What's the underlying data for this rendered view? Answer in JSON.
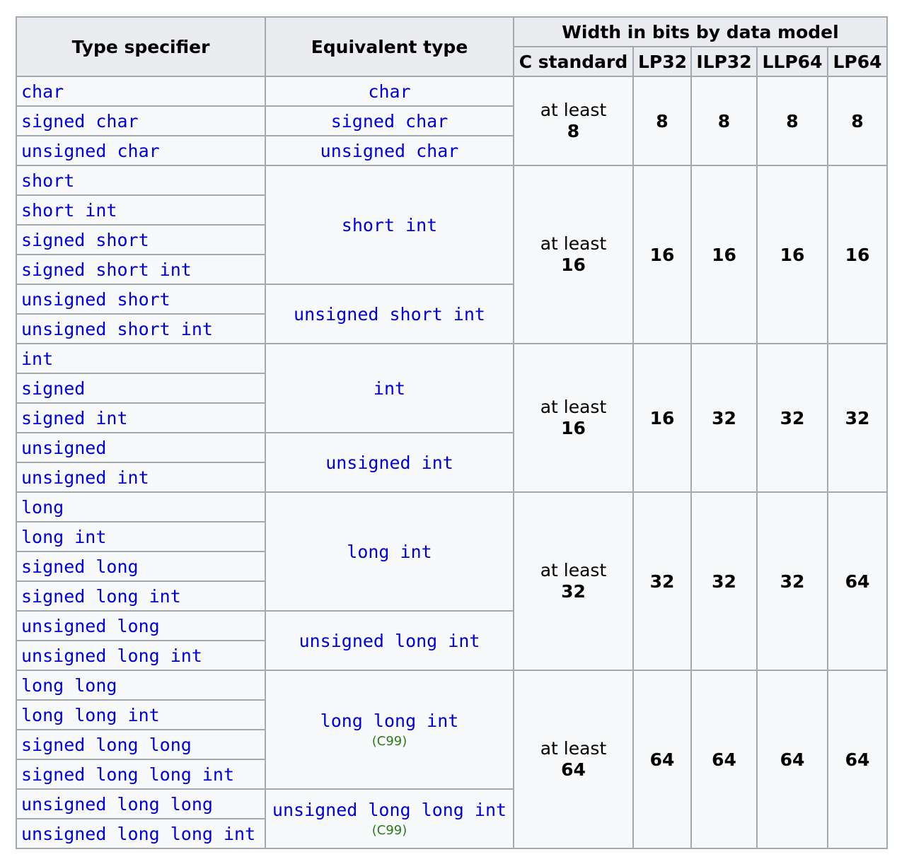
{
  "headers": {
    "type_specifier": "Type specifier",
    "equivalent_type": "Equivalent type",
    "width_group": "Width in bits by data model",
    "models": [
      "C standard",
      "LP32",
      "ILP32",
      "LLP64",
      "LP64"
    ]
  },
  "groups": [
    {
      "specifiers": [
        "char",
        "signed char",
        "unsigned char"
      ],
      "equivalents": [
        {
          "type": "char",
          "note": "",
          "span": 1
        },
        {
          "type": "signed char",
          "note": "",
          "span": 1
        },
        {
          "type": "unsigned char",
          "note": "",
          "span": 1
        }
      ],
      "c_standard_lead": "at least",
      "c_standard_min": "8",
      "widths": [
        "8",
        "8",
        "8",
        "8"
      ]
    },
    {
      "specifiers": [
        "short",
        "short int",
        "signed short",
        "signed short int",
        "unsigned short",
        "unsigned short int"
      ],
      "equivalents": [
        {
          "type": "short int",
          "note": "",
          "span": 4
        },
        {
          "type": "unsigned short int",
          "note": "",
          "span": 2
        }
      ],
      "c_standard_lead": "at least",
      "c_standard_min": "16",
      "widths": [
        "16",
        "16",
        "16",
        "16"
      ]
    },
    {
      "specifiers": [
        "int",
        "signed",
        "signed int",
        "unsigned",
        "unsigned int"
      ],
      "equivalents": [
        {
          "type": "int",
          "note": "",
          "span": 3
        },
        {
          "type": "unsigned int",
          "note": "",
          "span": 2
        }
      ],
      "c_standard_lead": "at least",
      "c_standard_min": "16",
      "widths": [
        "16",
        "32",
        "32",
        "32"
      ]
    },
    {
      "specifiers": [
        "long",
        "long int",
        "signed long",
        "signed long int",
        "unsigned long",
        "unsigned long int"
      ],
      "equivalents": [
        {
          "type": "long int",
          "note": "",
          "span": 4
        },
        {
          "type": "unsigned long int",
          "note": "",
          "span": 2
        }
      ],
      "c_standard_lead": "at least",
      "c_standard_min": "32",
      "widths": [
        "32",
        "32",
        "32",
        "64"
      ]
    },
    {
      "specifiers": [
        "long long",
        "long long int",
        "signed long long",
        "signed long long int",
        "unsigned long long",
        "unsigned long long int"
      ],
      "equivalents": [
        {
          "type": "long long int",
          "note": "(C99)",
          "span": 4
        },
        {
          "type": "unsigned long long int",
          "note": "(C99)",
          "span": 2
        }
      ],
      "c_standard_lead": "at least",
      "c_standard_min": "64",
      "widths": [
        "64",
        "64",
        "64",
        "64"
      ]
    }
  ]
}
